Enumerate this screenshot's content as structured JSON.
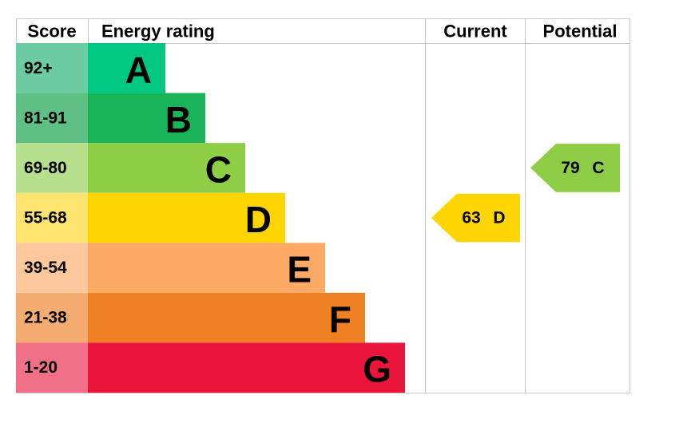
{
  "header": {
    "score": "Score",
    "energy_rating": "Energy rating",
    "current": "Current",
    "potential": "Potential"
  },
  "bands": [
    {
      "score": "92+",
      "rating": "A",
      "color": "#00c781",
      "score_color": "#6ccba0"
    },
    {
      "score": "81-91",
      "rating": "B",
      "color": "#19b459",
      "score_color": "#5fc085"
    },
    {
      "score": "69-80",
      "rating": "C",
      "color": "#8dce46",
      "score_color": "#b6df8e"
    },
    {
      "score": "55-68",
      "rating": "D",
      "color": "#ffd500",
      "score_color": "#fde46e"
    },
    {
      "score": "39-54",
      "rating": "E",
      "color": "#fcaa65",
      "score_color": "#fdc89d"
    },
    {
      "score": "21-38",
      "rating": "F",
      "color": "#ef8023",
      "score_color": "#f4ac70"
    },
    {
      "score": "1-20",
      "rating": "G",
      "color": "#e9153b",
      "score_color": "#f07087"
    }
  ],
  "current": {
    "score": 63,
    "rating": "D"
  },
  "potential": {
    "score": 79,
    "rating": "C"
  }
}
